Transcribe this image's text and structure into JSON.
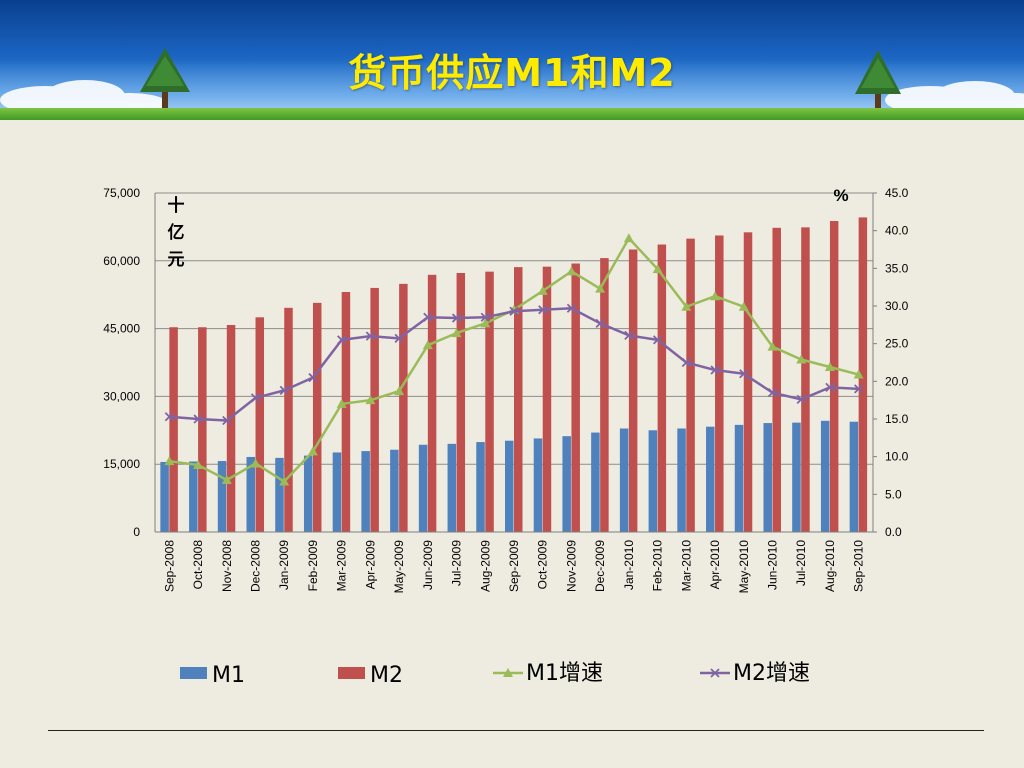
{
  "slide": {
    "title": "货币供应M1和M2"
  },
  "colors": {
    "m1_bar": "#4f81bd",
    "m2_bar": "#c0504d",
    "m1_growth": "#9bbb59",
    "m2_growth": "#8064a2",
    "background": "#eeece1",
    "title": "#ffeb00"
  },
  "chart_data": {
    "type": "bar",
    "left_axis_unit": "十\n亿\n元",
    "right_axis_unit": "%",
    "categories": [
      "Sep-2008",
      "Oct-2008",
      "Nov-2008",
      "Dec-2008",
      "Jan-2009",
      "Feb-2009",
      "Mar-2009",
      "Apr-2009",
      "May-2009",
      "Jun-2009",
      "Jul-2009",
      "Aug-2009",
      "Sep-2009",
      "Oct-2009",
      "Nov-2009",
      "Dec-2009",
      "Jan-2010",
      "Feb-2010",
      "Mar-2010",
      "Apr-2010",
      "May-2010",
      "Jun-2010",
      "Jul-2010",
      "Aug-2010",
      "Sep-2010"
    ],
    "ylim_left": [
      0,
      75000
    ],
    "yticks_left": [
      "0",
      "15,000",
      "30,000",
      "45,000",
      "60,000",
      "75,000"
    ],
    "ylim_right": [
      0,
      45
    ],
    "yticks_right": [
      "0.0",
      "5.0",
      "10.0",
      "15.0",
      "20.0",
      "25.0",
      "30.0",
      "35.0",
      "40.0",
      "45.0"
    ],
    "grid": "horizontal",
    "legend_position": "bottom",
    "series": [
      {
        "name": "M1",
        "type": "bar",
        "axis": "left",
        "color": "#4f81bd",
        "values": [
          15500,
          15600,
          15700,
          16600,
          16400,
          16900,
          17600,
          17900,
          18200,
          19300,
          19500,
          19900,
          20200,
          20700,
          21200,
          22000,
          22900,
          22500,
          22900,
          23300,
          23700,
          24100,
          24200,
          24600,
          24400
        ]
      },
      {
        "name": "M2",
        "type": "bar",
        "axis": "left",
        "color": "#c0504d",
        "values": [
          45300,
          45300,
          45800,
          47500,
          49600,
          50700,
          53100,
          54000,
          54900,
          56900,
          57300,
          57600,
          58600,
          58700,
          59400,
          60600,
          62500,
          63600,
          64900,
          65600,
          66300,
          67300,
          67400,
          68800,
          69600
        ]
      },
      {
        "name": "M1增速",
        "type": "line",
        "axis": "right",
        "color": "#9bbb59",
        "marker": "triangle",
        "values": [
          9.4,
          8.9,
          6.9,
          9.1,
          6.7,
          10.7,
          17.0,
          17.5,
          18.7,
          24.8,
          26.4,
          27.7,
          29.5,
          32.0,
          34.6,
          32.3,
          39.0,
          34.9,
          29.9,
          31.3,
          29.9,
          24.6,
          22.9,
          21.9,
          20.9
        ]
      },
      {
        "name": "M2增速",
        "type": "line",
        "axis": "right",
        "color": "#8064a2",
        "marker": "x",
        "values": [
          15.3,
          15.0,
          14.8,
          17.8,
          18.8,
          20.5,
          25.5,
          26.0,
          25.7,
          28.5,
          28.4,
          28.5,
          29.3,
          29.5,
          29.7,
          27.7,
          26.1,
          25.5,
          22.5,
          21.5,
          21.0,
          18.5,
          17.6,
          19.2,
          19.0
        ]
      }
    ]
  }
}
